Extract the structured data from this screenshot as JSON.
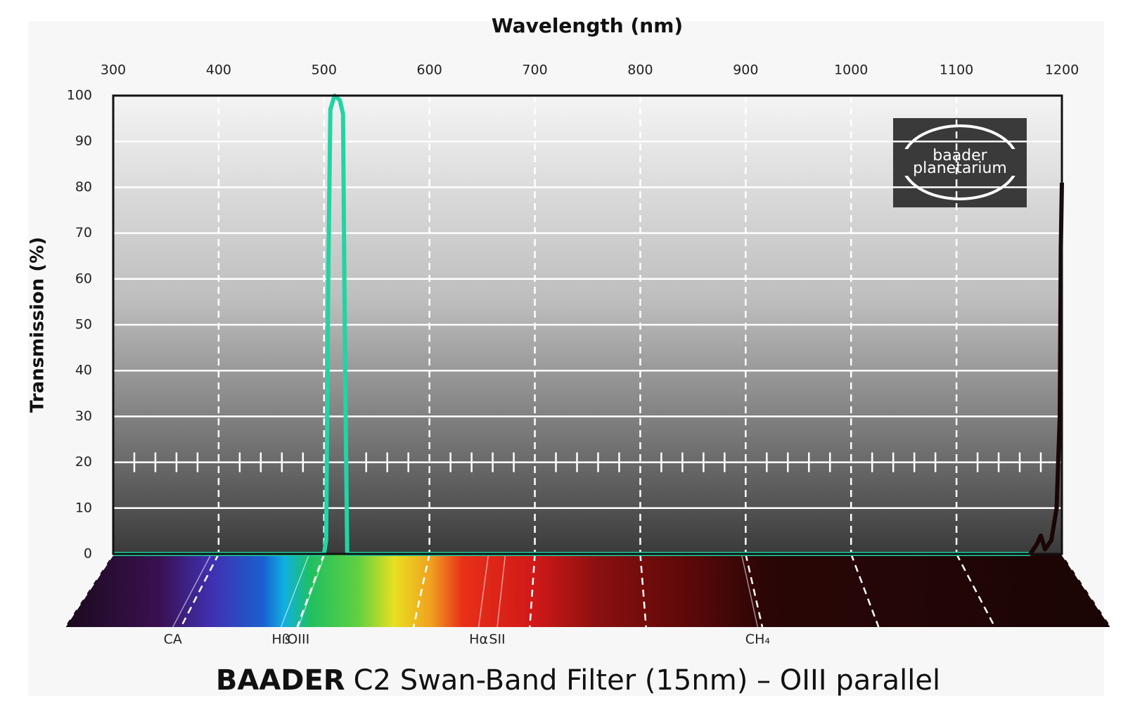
{
  "chart_data": {
    "type": "line",
    "x_label": "Wavelength (nm)",
    "y_label": "Transmission (%)",
    "title_bold": "BAADER",
    "title": "C2 Swan-Band Filter (15nm) – OIII parallel",
    "logo": [
      "baader",
      "planetarium"
    ],
    "xlim": [
      300,
      1200
    ],
    "xticks": [
      300,
      400,
      500,
      600,
      700,
      800,
      900,
      1000,
      1100,
      1200
    ],
    "ylim": [
      0,
      100
    ],
    "yticks": [
      0,
      10,
      20,
      30,
      40,
      50,
      60,
      70,
      80,
      90,
      100
    ],
    "grid": true,
    "series": [
      {
        "color": "#22d4a4",
        "x": [
          300,
          500,
          502,
          504,
          506,
          510,
          515,
          518,
          520,
          522,
          600,
          700,
          800,
          900,
          1000,
          1100,
          1170
        ],
        "values": [
          0,
          0,
          3,
          60,
          97,
          100,
          99,
          96,
          40,
          0,
          0,
          0,
          0,
          0,
          0,
          0,
          0
        ]
      },
      {
        "color": "#1a0606",
        "x": [
          1170,
          1176,
          1180,
          1184,
          1190,
          1195,
          1198,
          1199,
          1200
        ],
        "values": [
          0,
          2,
          4,
          1,
          3,
          10,
          30,
          67,
          81
        ]
      }
    ],
    "annotations": [
      {
        "text": "CA",
        "x": 393
      },
      {
        "text": "Hß",
        "x": 486
      },
      {
        "text": "OIII",
        "x": 501
      },
      {
        "text": "Hα",
        "x": 656
      },
      {
        "text": "SII",
        "x": 672
      },
      {
        "text": "CH₄",
        "x": 896
      }
    ]
  }
}
